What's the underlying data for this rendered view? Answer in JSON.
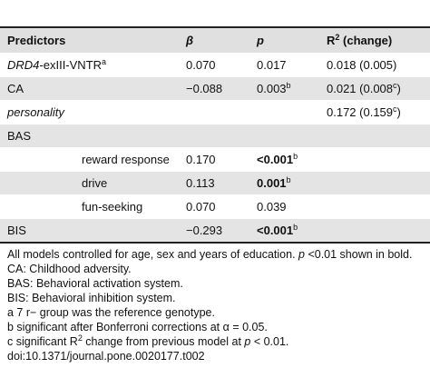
{
  "table": {
    "header": {
      "predictors": "Predictors",
      "beta": "β",
      "p": "p",
      "r2": [
        "R",
        "2",
        " (change)"
      ]
    },
    "rows": [
      {
        "label": [
          "DRD4",
          "-exIII-VNTR",
          "a"
        ],
        "beta": "0.070",
        "p": [
          "0.017"
        ],
        "r2": [
          "0.018 (0.005)"
        ]
      },
      {
        "label": [
          "CA"
        ],
        "beta": "−0.088",
        "p": [
          "0.003",
          "b"
        ],
        "r2": [
          "0.021 (0.008",
          "c",
          ")"
        ]
      },
      {
        "label": [
          "personality"
        ],
        "r2": [
          "0.172 (0.159",
          "c",
          ")"
        ]
      },
      {
        "label": [
          "BAS"
        ]
      },
      {
        "label": [
          "reward response"
        ],
        "beta": "0.170",
        "p": [
          "<0.001",
          "b"
        ]
      },
      {
        "label": [
          "drive"
        ],
        "beta": "0.113",
        "p": [
          "0.001",
          "b"
        ]
      },
      {
        "label": [
          "fun-seeking"
        ],
        "beta": "0.070",
        "p": [
          "0.039"
        ]
      },
      {
        "label": [
          "BIS"
        ],
        "beta": "−0.293",
        "p": [
          "<0.001",
          "b"
        ]
      }
    ]
  },
  "notes": [
    [
      "All models controlled for age, sex and years of education. ",
      "p",
      " <0.01 shown in bold."
    ],
    [
      "CA: Childhood adversity."
    ],
    [
      "BAS: Behavioral activation system."
    ],
    [
      "BIS: Behavioral inhibition system."
    ],
    [
      "a 7 r− group was the reference genotype."
    ],
    [
      "b significant after Bonferroni corrections at α = 0.05."
    ],
    [
      "c significant R",
      "2",
      " change from previous model at ",
      "p",
      " < 0.01."
    ],
    [
      "doi:10.1371/journal.pone.0020177.t002"
    ]
  ]
}
